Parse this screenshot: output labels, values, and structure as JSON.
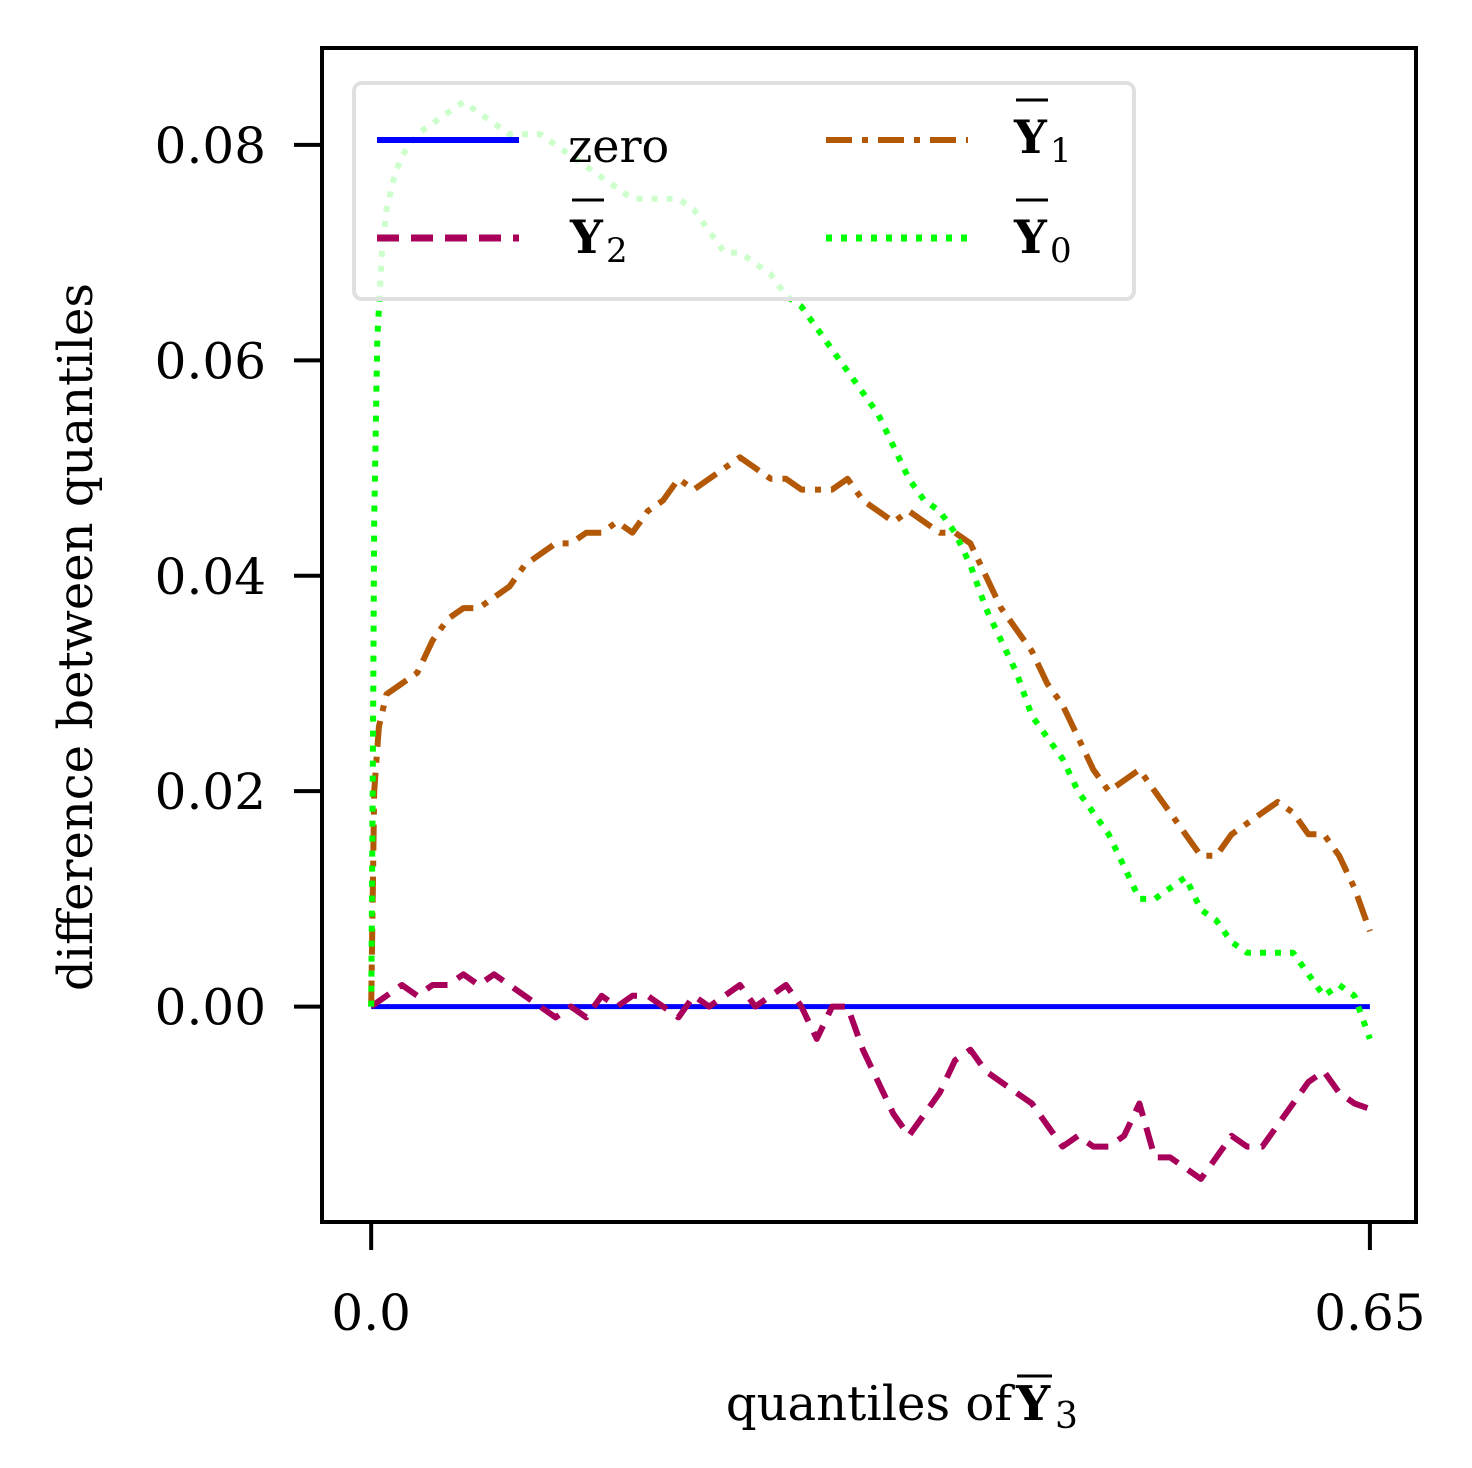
{
  "chart_data": {
    "type": "line",
    "title": "",
    "xlabel": {
      "text": "quantiles of ",
      "symbol": "Y",
      "sub": "3"
    },
    "ylabel": "difference between quantiles",
    "xlim": [
      -0.032,
      0.68
    ],
    "ylim": [
      -0.02,
      0.089
    ],
    "xticks": [
      {
        "value": 0.0,
        "label": "0.0"
      },
      {
        "value": 0.65,
        "label": "0.65"
      }
    ],
    "yticks": [
      {
        "value": 0.0,
        "label": "0.00"
      },
      {
        "value": 0.02,
        "label": "0.02"
      },
      {
        "value": 0.04,
        "label": "0.04"
      },
      {
        "value": 0.06,
        "label": "0.06"
      },
      {
        "value": 0.08,
        "label": "0.08"
      }
    ],
    "legend": {
      "placement": "top-left",
      "columns": 2
    },
    "series": [
      {
        "name": "zero",
        "legend_text": "zero",
        "symbol": "",
        "sub": "",
        "color": "#0000ff",
        "style": "solid",
        "x": [
          0.0,
          0.65
        ],
        "y": [
          0.0,
          0.0
        ]
      },
      {
        "name": "Y2",
        "legend_text": "",
        "symbol": "Y",
        "sub": "2",
        "color": "#a8005a",
        "style": "dashed",
        "x": [
          0.0,
          0.01,
          0.02,
          0.03,
          0.04,
          0.05,
          0.06,
          0.07,
          0.08,
          0.09,
          0.1,
          0.11,
          0.12,
          0.13,
          0.14,
          0.15,
          0.16,
          0.17,
          0.18,
          0.19,
          0.2,
          0.21,
          0.22,
          0.23,
          0.24,
          0.25,
          0.26,
          0.27,
          0.28,
          0.29,
          0.3,
          0.31,
          0.32,
          0.33,
          0.34,
          0.35,
          0.36,
          0.37,
          0.38,
          0.39,
          0.4,
          0.41,
          0.42,
          0.43,
          0.44,
          0.45,
          0.46,
          0.47,
          0.48,
          0.49,
          0.5,
          0.51,
          0.52,
          0.53,
          0.54,
          0.55,
          0.56,
          0.57,
          0.58,
          0.59,
          0.6,
          0.61,
          0.62,
          0.63,
          0.64,
          0.65
        ],
        "y": [
          0.0,
          0.001,
          0.002,
          0.001,
          0.002,
          0.002,
          0.003,
          0.002,
          0.003,
          0.002,
          0.001,
          0.0,
          -0.001,
          0.0,
          -0.001,
          0.001,
          0.0,
          0.001,
          0.001,
          0.0,
          -0.001,
          0.001,
          0.0,
          0.001,
          0.002,
          0.0,
          0.001,
          0.002,
          0.0,
          -0.003,
          0.0,
          0.0,
          -0.004,
          -0.007,
          -0.01,
          -0.012,
          -0.01,
          -0.008,
          -0.005,
          -0.004,
          -0.006,
          -0.007,
          -0.008,
          -0.009,
          -0.011,
          -0.013,
          -0.012,
          -0.013,
          -0.013,
          -0.012,
          -0.009,
          -0.014,
          -0.014,
          -0.015,
          -0.016,
          -0.014,
          -0.012,
          -0.013,
          -0.013,
          -0.011,
          -0.009,
          -0.007,
          -0.006,
          -0.008,
          -0.009,
          -0.0095
        ]
      },
      {
        "name": "Y1",
        "legend_text": "",
        "symbol": "Y",
        "sub": "1",
        "color": "#b35806",
        "style": "dashdot",
        "x": [
          0.0,
          0.002,
          0.005,
          0.01,
          0.02,
          0.03,
          0.04,
          0.05,
          0.06,
          0.07,
          0.08,
          0.09,
          0.1,
          0.11,
          0.12,
          0.13,
          0.14,
          0.15,
          0.16,
          0.17,
          0.18,
          0.19,
          0.2,
          0.21,
          0.22,
          0.23,
          0.24,
          0.25,
          0.26,
          0.27,
          0.28,
          0.29,
          0.3,
          0.31,
          0.32,
          0.33,
          0.34,
          0.35,
          0.36,
          0.37,
          0.38,
          0.39,
          0.4,
          0.41,
          0.42,
          0.43,
          0.44,
          0.45,
          0.46,
          0.47,
          0.48,
          0.49,
          0.5,
          0.51,
          0.52,
          0.53,
          0.54,
          0.55,
          0.56,
          0.57,
          0.58,
          0.59,
          0.6,
          0.61,
          0.62,
          0.63,
          0.64,
          0.65
        ],
        "y": [
          0.0,
          0.02,
          0.026,
          0.029,
          0.03,
          0.031,
          0.034,
          0.036,
          0.037,
          0.037,
          0.038,
          0.039,
          0.041,
          0.042,
          0.043,
          0.043,
          0.044,
          0.044,
          0.045,
          0.044,
          0.046,
          0.047,
          0.049,
          0.048,
          0.049,
          0.05,
          0.051,
          0.05,
          0.049,
          0.049,
          0.048,
          0.048,
          0.048,
          0.049,
          0.047,
          0.046,
          0.045,
          0.046,
          0.045,
          0.044,
          0.044,
          0.043,
          0.04,
          0.037,
          0.035,
          0.033,
          0.03,
          0.028,
          0.025,
          0.022,
          0.02,
          0.021,
          0.022,
          0.02,
          0.018,
          0.016,
          0.014,
          0.014,
          0.016,
          0.017,
          0.018,
          0.019,
          0.018,
          0.016,
          0.016,
          0.014,
          0.011,
          0.007
        ]
      },
      {
        "name": "Y0",
        "legend_text": "",
        "symbol": "Y",
        "sub": "0",
        "color": "#00ff00",
        "style": "dotted",
        "x": [
          0.0,
          0.001,
          0.002,
          0.004,
          0.007,
          0.01,
          0.015,
          0.02,
          0.03,
          0.04,
          0.05,
          0.06,
          0.07,
          0.08,
          0.09,
          0.1,
          0.11,
          0.12,
          0.13,
          0.14,
          0.15,
          0.16,
          0.17,
          0.18,
          0.19,
          0.2,
          0.21,
          0.22,
          0.23,
          0.24,
          0.25,
          0.26,
          0.27,
          0.28,
          0.29,
          0.3,
          0.31,
          0.32,
          0.33,
          0.34,
          0.35,
          0.36,
          0.37,
          0.38,
          0.39,
          0.4,
          0.41,
          0.42,
          0.43,
          0.44,
          0.45,
          0.46,
          0.47,
          0.48,
          0.49,
          0.5,
          0.51,
          0.52,
          0.53,
          0.54,
          0.55,
          0.56,
          0.57,
          0.58,
          0.59,
          0.6,
          0.61,
          0.62,
          0.63,
          0.64,
          0.65
        ],
        "y": [
          0.0,
          0.02,
          0.045,
          0.062,
          0.07,
          0.074,
          0.077,
          0.079,
          0.081,
          0.082,
          0.083,
          0.084,
          0.083,
          0.082,
          0.081,
          0.081,
          0.081,
          0.08,
          0.079,
          0.078,
          0.077,
          0.076,
          0.075,
          0.075,
          0.075,
          0.075,
          0.074,
          0.072,
          0.07,
          0.07,
          0.069,
          0.068,
          0.066,
          0.065,
          0.063,
          0.061,
          0.059,
          0.057,
          0.055,
          0.052,
          0.049,
          0.047,
          0.046,
          0.044,
          0.041,
          0.037,
          0.034,
          0.031,
          0.027,
          0.025,
          0.023,
          0.02,
          0.018,
          0.016,
          0.013,
          0.01,
          0.01,
          0.011,
          0.012,
          0.009,
          0.008,
          0.006,
          0.005,
          0.005,
          0.005,
          0.005,
          0.003,
          0.001,
          0.002,
          0.001,
          -0.003
        ]
      }
    ]
  }
}
